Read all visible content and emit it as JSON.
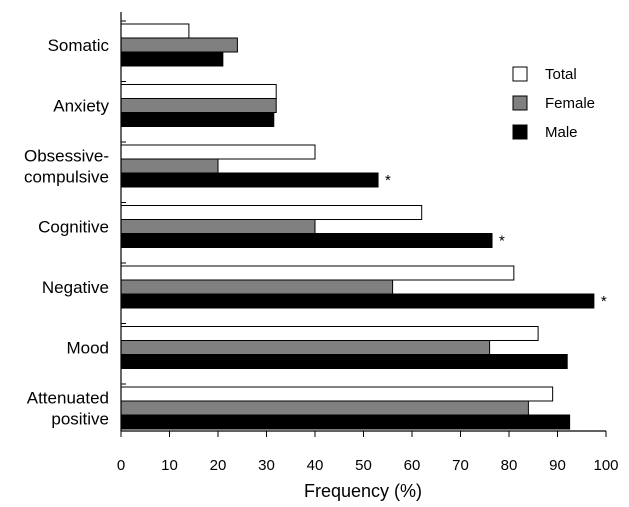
{
  "chart_data": {
    "type": "bar",
    "orientation": "horizontal",
    "categories": [
      [
        "Somatic"
      ],
      [
        "Anxiety"
      ],
      [
        "Obsessive-",
        "compulsive"
      ],
      [
        "Cognitive"
      ],
      [
        "Negative"
      ],
      [
        "Mood"
      ],
      [
        "Attenuated",
        "positive"
      ]
    ],
    "series": [
      {
        "name": "Total",
        "color": "#ffffff",
        "values": [
          14,
          32,
          40,
          62,
          81,
          86,
          89
        ]
      },
      {
        "name": "Female",
        "color": "#808080",
        "values": [
          24,
          32,
          20,
          40,
          56,
          76,
          84
        ]
      },
      {
        "name": "Male",
        "color": "#000000",
        "values": [
          21,
          31.5,
          53,
          76.5,
          97.5,
          92,
          92.5
        ]
      }
    ],
    "significance_marker": "*",
    "significant_categories": [
      2,
      3,
      4
    ],
    "xlabel": "Frequency (%)",
    "ylabel": "",
    "xlim": [
      0,
      100
    ],
    "xticks": [
      0,
      10,
      20,
      30,
      40,
      50,
      60,
      70,
      80,
      90,
      100
    ],
    "grid": false,
    "legend_position": "top-right"
  }
}
